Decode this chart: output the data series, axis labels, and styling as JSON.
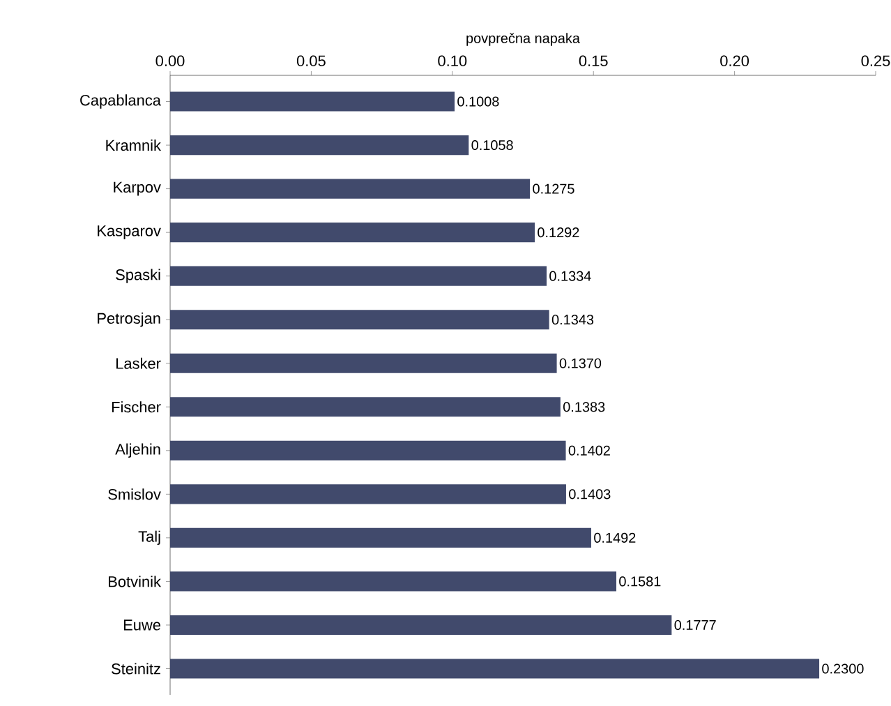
{
  "chart_data": {
    "type": "bar",
    "orientation": "horizontal",
    "xlabel": "povprečna napaka",
    "categories": [
      "Capablanca",
      "Kramnik",
      "Karpov",
      "Kasparov",
      "Spaski",
      "Petrosjan",
      "Lasker",
      "Fischer",
      "Aljehin",
      "Smislov",
      "Talj",
      "Botvinik",
      "Euwe",
      "Steinitz"
    ],
    "values": [
      0.1008,
      0.1058,
      0.1275,
      0.1292,
      0.1334,
      0.1343,
      0.137,
      0.1383,
      0.1402,
      0.1403,
      0.1492,
      0.1581,
      0.1777,
      0.23
    ],
    "value_labels": [
      "0.1008",
      "0.1058",
      "0.1275",
      "0.1292",
      "0.1334",
      "0.1343",
      "0.1370",
      "0.1383",
      "0.1402",
      "0.1403",
      "0.1492",
      "0.1581",
      "0.1777",
      "0.2300"
    ],
    "color": "#414a6c",
    "xlim": [
      0,
      0.25
    ],
    "xticks": [
      {
        "value": 0,
        "label": "0.00"
      },
      {
        "value": 0.05,
        "label": "0.05"
      },
      {
        "value": 0.1,
        "label": "0.10"
      },
      {
        "value": 0.15,
        "label": "0.15"
      },
      {
        "value": 0.2,
        "label": "0.20"
      },
      {
        "value": 0.25,
        "label": "0.25"
      }
    ]
  }
}
